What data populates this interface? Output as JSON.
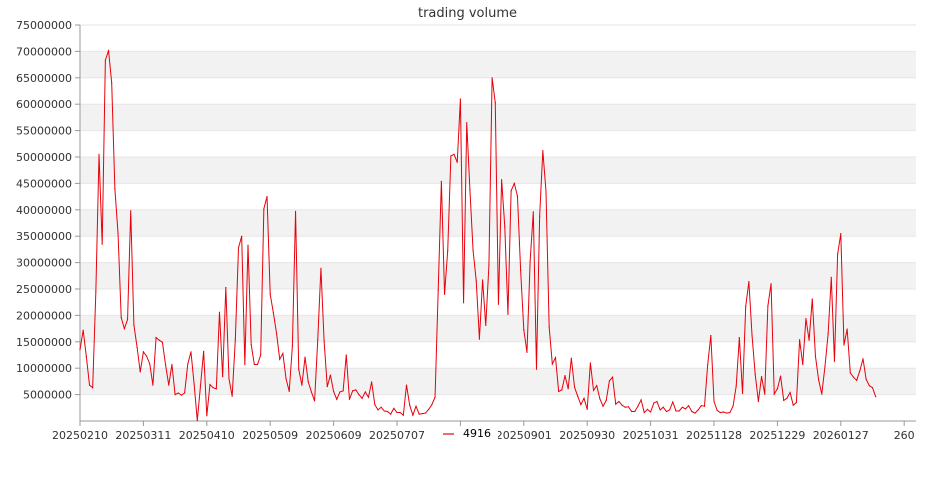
{
  "chart_data": {
    "type": "line",
    "title": "trading volume",
    "xlabel": "",
    "ylabel": "",
    "ylim": [
      0,
      75000000
    ],
    "ytick_values": [
      5000000,
      10000000,
      15000000,
      20000000,
      25000000,
      30000000,
      35000000,
      40000000,
      45000000,
      50000000,
      55000000,
      60000000,
      65000000,
      70000000,
      75000000
    ],
    "ytick_labels": [
      "5000000",
      "10000000",
      "15000000",
      "20000000",
      "25000000",
      "30000000",
      "35000000",
      "40000000",
      "45000000",
      "50000000",
      "55000000",
      "60000000",
      "65000000",
      "70000000",
      "75000000"
    ],
    "xtick_labels": [
      "20250210",
      "20250311",
      "20250410",
      "20250509",
      "20250609",
      "20250707",
      "",
      "20250901",
      "20250930",
      "20251031",
      "20251128",
      "20251229",
      "20260127",
      "260"
    ],
    "xtick_index": [
      0,
      20,
      40,
      60,
      80,
      100,
      120,
      140,
      160,
      180,
      200,
      220,
      240,
      260
    ],
    "grid": "horizontal bands",
    "band_color": "#f2f2f2",
    "legend": {
      "position": "bottom",
      "entries": [
        {
          "name": "4916",
          "color": "#e8000b"
        }
      ]
    },
    "series": [
      {
        "name": "4916",
        "color": "#e8000b",
        "values": [
          13500000,
          17200000,
          12200000,
          6800000,
          6300000,
          24500000,
          50500000,
          33500000,
          68300000,
          70200000,
          64000000,
          44000000,
          35500000,
          19600000,
          17500000,
          19200000,
          39800000,
          18200000,
          14000000,
          9300000,
          13100000,
          12300000,
          10800000,
          6800000,
          15800000,
          15300000,
          14900000,
          10600000,
          6800000,
          10700000,
          5000000,
          5300000,
          4900000,
          5300000,
          10800000,
          13100000,
          7000000,
          100000,
          6600000,
          13200000,
          1000000,
          6900000,
          6300000,
          6100000,
          20600000,
          8400000,
          25300000,
          8000000,
          4700000,
          15400000,
          32800000,
          35000000,
          10700000,
          33300000,
          14500000,
          10700000,
          10700000,
          12500000,
          40200000,
          42500000,
          24000000,
          20500000,
          16600000,
          11700000,
          12800000,
          8000000,
          5600000,
          14200000,
          39700000,
          9800000,
          6800000,
          12100000,
          7400000,
          5500000,
          3800000,
          15400000,
          28900000,
          15200000,
          6500000,
          8700000,
          5600000,
          4100000,
          5500000,
          5700000,
          12500000,
          4100000,
          5700000,
          5900000,
          5000000,
          4300000,
          5500000,
          4500000,
          7400000,
          3100000,
          2100000,
          2600000,
          1900000,
          1800000,
          1300000,
          2400000,
          1600000,
          1600000,
          1100000,
          6800000,
          3000000,
          1100000,
          2800000,
          1300000,
          1400000,
          1500000,
          2200000,
          3100000,
          4500000,
          24800000,
          45400000,
          24000000,
          32300000,
          50200000,
          50500000,
          49000000,
          61000000,
          22400000,
          56500000,
          43800000,
          32300000,
          26500000,
          15500000,
          26700000,
          18100000,
          29500000,
          65000000,
          60300000,
          22100000,
          45700000,
          36800000,
          20200000,
          43600000,
          45000000,
          42600000,
          28500000,
          17300000,
          13000000,
          30300000,
          39600000,
          9800000,
          38800000,
          51200000,
          43500000,
          17800000,
          10800000,
          12000000,
          5600000,
          5900000,
          8600000,
          6100000,
          11900000,
          6400000,
          4700000,
          3100000,
          4300000,
          2200000,
          11000000,
          5800000,
          6700000,
          4200000,
          2800000,
          3900000,
          7600000,
          8300000,
          3200000,
          3700000,
          3000000,
          2600000,
          2700000,
          1800000,
          1800000,
          2800000,
          4000000,
          1600000,
          2200000,
          1700000,
          3400000,
          3700000,
          2100000,
          2600000,
          1800000,
          2100000,
          3600000,
          1900000,
          1900000,
          2600000,
          2300000,
          2900000,
          1800000,
          1500000,
          2100000,
          2900000,
          2800000,
          10600000,
          16200000,
          3700000,
          2000000,
          1600000,
          1700000,
          1500000,
          1600000,
          2800000,
          6600000,
          15800000,
          5200000,
          21700000,
          26400000,
          16200000,
          8800000,
          3700000,
          8400000,
          5100000,
          21800000,
          26000000,
          5100000,
          6100000,
          8500000,
          3900000,
          4300000,
          5400000,
          3000000,
          3500000,
          15400000,
          10700000,
          19400000,
          15300000,
          23100000,
          12300000,
          7800000,
          5100000,
          10300000,
          16500000,
          27200000,
          11300000,
          31600000,
          35500000,
          14400000,
          17400000,
          9100000,
          8300000,
          7700000,
          9500000,
          11800000,
          7900000,
          6700000,
          6300000,
          4600000
        ]
      }
    ]
  }
}
